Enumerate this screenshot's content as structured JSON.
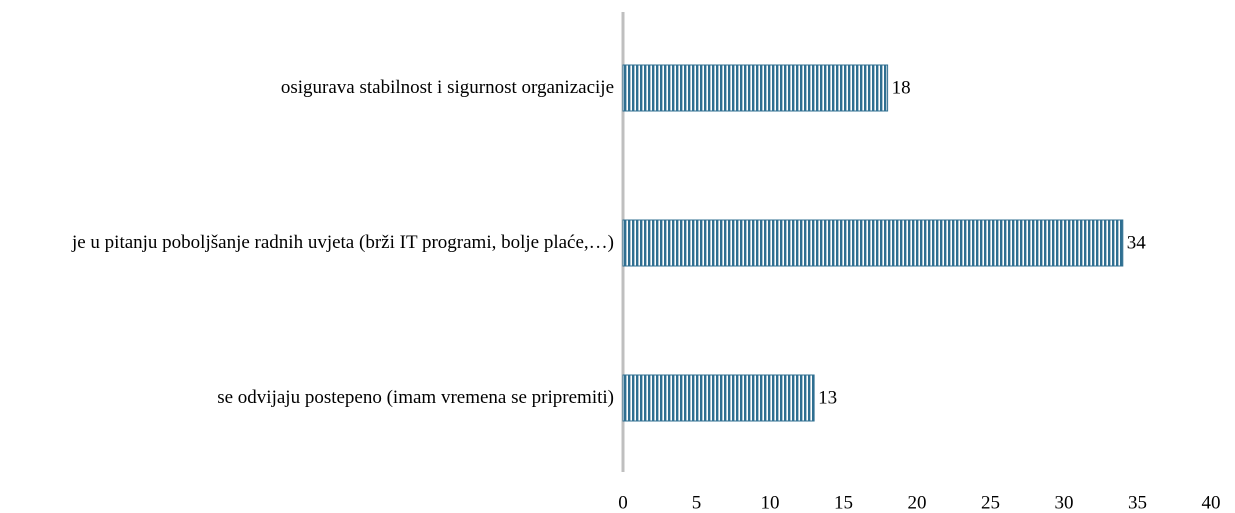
{
  "chart_data": {
    "type": "hbar",
    "categories": [
      "osigurava stabilnost i sigurnost organizacije",
      "je u pitanju poboljšanje radnih uvjeta (brži IT programi, bolje plaće,…)",
      "se odvijaju postepeno (imam vremena se pripremiti)"
    ],
    "values": [
      18,
      34,
      13
    ],
    "color": "#2f6f91",
    "xlim": [
      0,
      40
    ],
    "xticks": [
      0,
      5,
      10,
      15,
      20,
      25,
      30,
      35,
      40
    ]
  }
}
